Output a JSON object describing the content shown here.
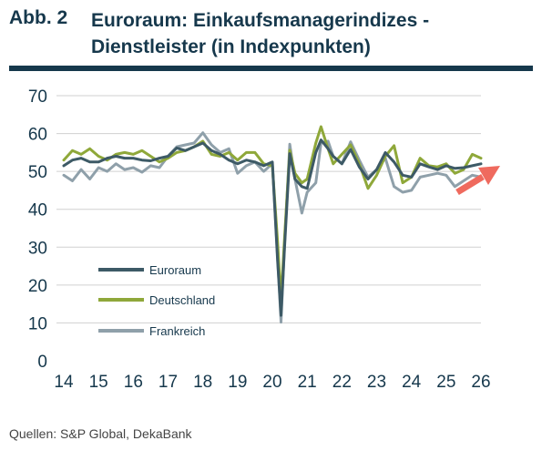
{
  "heading": {
    "label": "Abb. 2",
    "title": "Euroraum: Einkaufsmanagerindizes - Dienstleister (in Indexpunkten)"
  },
  "source": "Quellen: S&P Global, DekaBank",
  "colors": {
    "euroraum": "#3d5a66",
    "deutschland": "#8fa83a",
    "frankreich": "#8fa0aa",
    "arrow": "#ef6a5e",
    "grid": "#d0d0d0",
    "text": "#16384c"
  },
  "chart_data": {
    "type": "line",
    "xlim": [
      14,
      26
    ],
    "ylim": [
      0,
      70
    ],
    "yticks": [
      0,
      10,
      20,
      30,
      40,
      50,
      60,
      70
    ],
    "xticks": [
      "14",
      "15",
      "16",
      "17",
      "18",
      "19",
      "20",
      "21",
      "22",
      "23",
      "24",
      "25",
      "26"
    ],
    "legend_position": "bottom-left inside",
    "series": [
      {
        "name": "Euroraum",
        "color": "#3d5a66",
        "x": [
          14.0,
          14.25,
          14.5,
          14.75,
          15.0,
          15.25,
          15.5,
          15.75,
          16.0,
          16.25,
          16.5,
          16.75,
          17.0,
          17.25,
          17.5,
          17.75,
          18.0,
          18.25,
          18.5,
          18.75,
          19.0,
          19.25,
          19.5,
          19.75,
          20.0,
          20.15,
          20.25,
          20.35,
          20.5,
          20.65,
          20.85,
          21.0,
          21.25,
          21.4,
          21.6,
          21.75,
          22.0,
          22.25,
          22.5,
          22.75,
          23.0,
          23.25,
          23.5,
          23.75,
          24.0,
          24.25,
          24.5,
          24.75,
          25.0,
          25.25,
          25.5,
          25.75,
          26.0
        ],
        "y": [
          51.5,
          53,
          53.5,
          52.5,
          52.5,
          53.5,
          54,
          53.5,
          53.5,
          53,
          52.8,
          53.5,
          54,
          56.2,
          55.5,
          56.5,
          57.5,
          55.5,
          54.5,
          53,
          52,
          53,
          52.5,
          51.5,
          52.5,
          26.5,
          12,
          30,
          54.7,
          48,
          46,
          45.5,
          55,
          58.3,
          56,
          54,
          52,
          55.8,
          51.2,
          48,
          50.5,
          55,
          52.5,
          49,
          48.5,
          52,
          51.2,
          50.5,
          51.5,
          50.8,
          51,
          51.5,
          52
        ]
      },
      {
        "name": "Deutschland",
        "color": "#8fa83a",
        "x": [
          14.0,
          14.25,
          14.5,
          14.75,
          15.0,
          15.25,
          15.5,
          15.75,
          16.0,
          16.25,
          16.5,
          16.75,
          17.0,
          17.25,
          17.5,
          17.75,
          18.0,
          18.25,
          18.5,
          18.75,
          19.0,
          19.25,
          19.5,
          19.75,
          20.0,
          20.15,
          20.25,
          20.35,
          20.5,
          20.65,
          20.85,
          21.0,
          21.25,
          21.4,
          21.6,
          21.75,
          22.0,
          22.25,
          22.5,
          22.75,
          23.0,
          23.25,
          23.5,
          23.75,
          24.0,
          24.25,
          24.5,
          24.75,
          25.0,
          25.25,
          25.5,
          25.75,
          26.0
        ],
        "y": [
          53,
          55.5,
          54.5,
          56,
          54,
          53,
          54.5,
          55,
          54.5,
          55.5,
          54,
          52.5,
          53.5,
          55,
          55.5,
          56.5,
          58,
          54.5,
          54,
          55,
          53,
          55,
          55,
          52,
          51.5,
          31.5,
          16,
          32.6,
          55.6,
          49.5,
          47,
          48,
          57.5,
          61.8,
          56,
          52,
          54.5,
          57,
          52,
          45.5,
          49,
          54,
          56.8,
          47,
          48.5,
          53.5,
          51.5,
          51.2,
          52,
          49.5,
          50.5,
          54.5,
          53.5
        ]
      },
      {
        "name": "Frankreich",
        "color": "#8fa0aa",
        "x": [
          14.0,
          14.25,
          14.5,
          14.75,
          15.0,
          15.25,
          15.5,
          15.75,
          16.0,
          16.25,
          16.5,
          16.75,
          17.0,
          17.25,
          17.5,
          17.75,
          18.0,
          18.25,
          18.5,
          18.75,
          19.0,
          19.25,
          19.5,
          19.75,
          20.0,
          20.15,
          20.25,
          20.35,
          20.5,
          20.65,
          20.85,
          21.0,
          21.25,
          21.4,
          21.6,
          21.75,
          22.0,
          22.25,
          22.5,
          22.75,
          23.0,
          23.25,
          23.5,
          23.75,
          24.0,
          24.25,
          24.5,
          24.75,
          25.0,
          25.25,
          25.5,
          25.75,
          26.0
        ],
        "y": [
          49,
          47.5,
          50.5,
          48,
          51,
          50,
          52,
          50.5,
          51,
          49.8,
          51.5,
          51,
          54,
          56.5,
          57,
          57.5,
          60.2,
          57,
          55,
          56,
          49.5,
          51.5,
          52.5,
          50,
          52,
          27.4,
          10.2,
          31,
          57.2,
          48,
          39,
          44.5,
          47,
          57.5,
          58,
          54,
          52,
          57.8,
          53,
          48.5,
          50.5,
          53.5,
          46,
          44.5,
          45,
          48.5,
          49,
          49.5,
          49,
          46,
          47.5,
          49,
          48.5
        ]
      }
    ]
  }
}
